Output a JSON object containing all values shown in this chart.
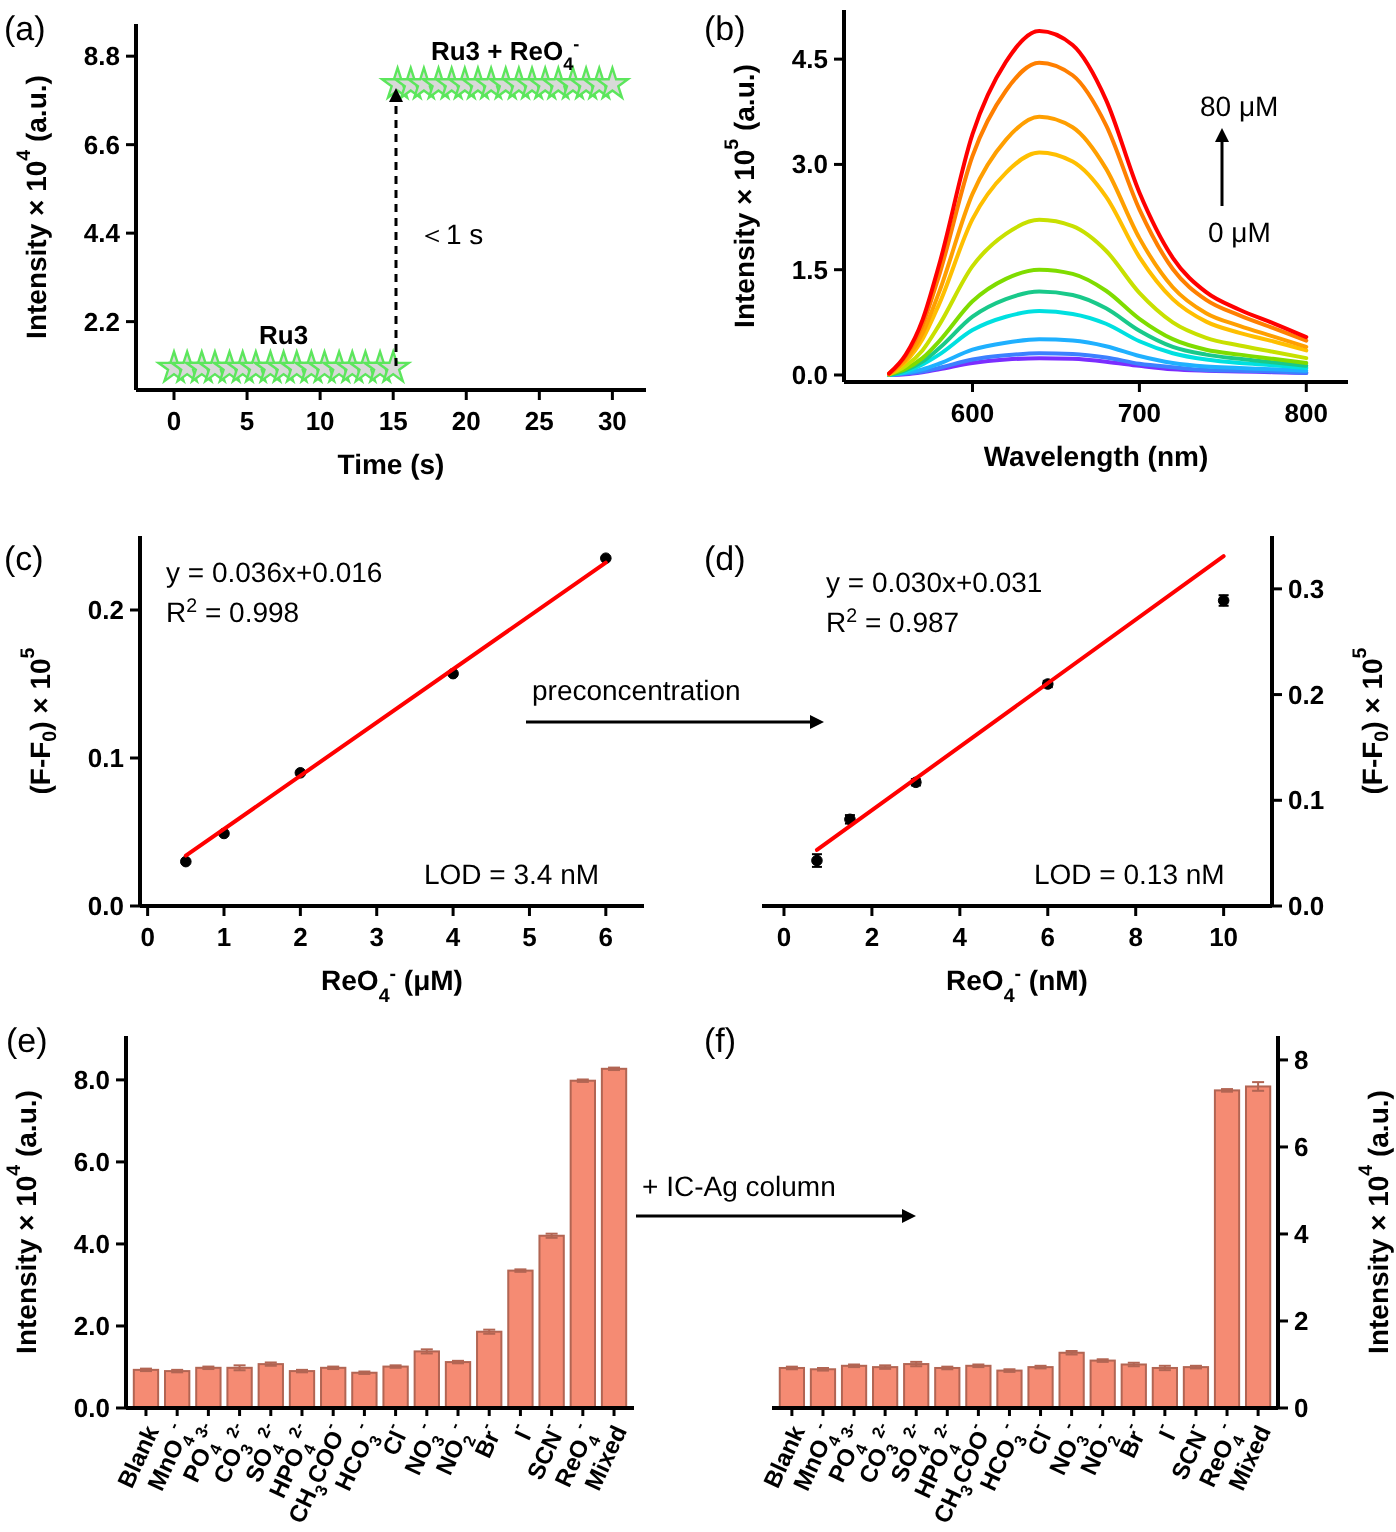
{
  "chart_data": [
    {
      "type": "scatter",
      "title": "(a)",
      "xlabel": "Time (s)",
      "ylabel": "Intensity × 10$^{4}$ (a.u.)",
      "xlim": [
        -2.6,
        32.3
      ],
      "xticks": [
        0,
        5,
        10,
        15,
        20,
        25,
        30
      ],
      "ylim": [
        0.5,
        9.6
      ],
      "yticks": [
        2.2,
        4.4,
        6.6,
        8.8
      ],
      "marker": "star",
      "series": [
        {
          "name": "Ru3",
          "color": "#5ce65c",
          "x": [
            0,
            0.9,
            1.9,
            2.8,
            3.8,
            4.7,
            5.6,
            6.6,
            7.5,
            8.4,
            9.4,
            10.3,
            11.3,
            12.2,
            13.1,
            14.1,
            15
          ],
          "values": [
            1.05,
            1.05,
            1.05,
            1.05,
            1.05,
            1.05,
            1.05,
            1.05,
            1.05,
            1.05,
            1.05,
            1.05,
            1.05,
            1.05,
            1.05,
            1.05,
            1.05
          ]
        },
        {
          "name": "Ru3 + ReO$_{4}$$^{-}$",
          "color": "#5ce65c",
          "x": [
            15.3,
            16.2,
            17.1,
            18.1,
            19,
            19.9,
            20.8,
            21.7,
            22.7,
            23.6,
            24.5,
            25.4,
            26.3,
            27.3,
            28.2,
            29.1,
            30
          ],
          "values": [
            8.1,
            8.1,
            8.1,
            8.1,
            8.1,
            8.1,
            8.1,
            8.1,
            8.1,
            8.1,
            8.1,
            8.1,
            8.1,
            8.1,
            8.1,
            8.1,
            8.1
          ]
        }
      ],
      "annotations": [
        "＜1 s"
      ]
    },
    {
      "type": "line",
      "title": "(b)",
      "xlabel": "Wavelength (nm)",
      "ylabel": "Intensity × 10$^{5}$ (a.u.)",
      "xlim": [
        523,
        825
      ],
      "xticks": [
        600,
        700,
        800
      ],
      "ylim": [
        -0.1,
        5.2
      ],
      "yticks": [
        {
          "value": 0,
          "label": "0.0"
        },
        {
          "value": 1.5,
          "label": "1.5"
        },
        {
          "value": 3,
          "label": "3.0"
        },
        {
          "value": 4.5,
          "label": "4.5"
        }
      ],
      "x": [
        550,
        560,
        570,
        580,
        600,
        620,
        640,
        660,
        680,
        700,
        720,
        740,
        760,
        780,
        800
      ],
      "series": [
        {
          "color": "#7b2dff",
          "values": [
            0,
            0.01,
            0.04,
            0.08,
            0.17,
            0.22,
            0.24,
            0.23,
            0.19,
            0.13,
            0.08,
            0.06,
            0.05,
            0.04,
            0.03
          ]
        },
        {
          "color": "#3c80ff",
          "values": [
            0,
            0.02,
            0.05,
            0.1,
            0.22,
            0.28,
            0.31,
            0.3,
            0.25,
            0.16,
            0.11,
            0.07,
            0.06,
            0.05,
            0.03
          ]
        },
        {
          "color": "#1fb0ff",
          "values": [
            0,
            0.03,
            0.08,
            0.16,
            0.36,
            0.46,
            0.51,
            0.49,
            0.41,
            0.27,
            0.17,
            0.12,
            0.1,
            0.08,
            0.06
          ]
        },
        {
          "color": "#00e0e0",
          "values": [
            0,
            0.05,
            0.15,
            0.29,
            0.64,
            0.83,
            0.91,
            0.87,
            0.73,
            0.48,
            0.31,
            0.22,
            0.17,
            0.14,
            0.1
          ]
        },
        {
          "color": "#19c98a",
          "values": [
            0,
            0.07,
            0.19,
            0.38,
            0.83,
            1.08,
            1.19,
            1.14,
            0.95,
            0.63,
            0.4,
            0.29,
            0.23,
            0.18,
            0.13
          ]
        },
        {
          "color": "#7fdc00",
          "values": [
            0.01,
            0.09,
            0.24,
            0.48,
            1.05,
            1.37,
            1.5,
            1.44,
            1.2,
            0.8,
            0.51,
            0.36,
            0.29,
            0.23,
            0.17
          ]
        },
        {
          "color": "#c8e000",
          "values": [
            0.01,
            0.13,
            0.35,
            0.71,
            1.55,
            2.01,
            2.21,
            2.12,
            1.77,
            1.17,
            0.75,
            0.53,
            0.42,
            0.33,
            0.24
          ]
        },
        {
          "color": "#ffbf00",
          "values": [
            0.01,
            0.19,
            0.51,
            1.01,
            2.22,
            2.88,
            3.17,
            3.04,
            2.54,
            1.68,
            1.08,
            0.76,
            0.6,
            0.48,
            0.35
          ]
        },
        {
          "color": "#ff9f00",
          "values": [
            0.01,
            0.22,
            0.59,
            1.18,
            2.58,
            3.35,
            3.68,
            3.53,
            2.94,
            1.95,
            1.25,
            0.88,
            0.7,
            0.55,
            0.4
          ]
        },
        {
          "color": "#ff7f00",
          "values": [
            0.02,
            0.27,
            0.71,
            1.42,
            3.12,
            4.05,
            4.45,
            4.27,
            3.56,
            2.36,
            1.51,
            1.07,
            0.85,
            0.67,
            0.49
          ]
        },
        {
          "color": "#ff0000",
          "values": [
            0.02,
            0.29,
            0.78,
            1.57,
            3.43,
            4.46,
            4.9,
            4.7,
            3.92,
            2.6,
            1.67,
            1.18,
            0.93,
            0.74,
            0.54
          ]
        }
      ],
      "annotations": [
        "80 μM",
        "0 μM"
      ]
    },
    {
      "type": "scatter",
      "title": "(c)",
      "xlabel": "ReO$_{4}$$^{-}$ (μM)",
      "ylabel": "(F-F$_{0}$) × 10$^{5}$",
      "xlim": [
        -0.1,
        6.5
      ],
      "xticks": [
        0,
        1,
        2,
        3,
        4,
        5,
        6
      ],
      "ylim": [
        0,
        0.25
      ],
      "yticks": [
        {
          "value": 0,
          "label": "0.0"
        },
        {
          "value": 0.1,
          "label": "0.1"
        },
        {
          "value": 0.2,
          "label": "0.2"
        }
      ],
      "series": [
        {
          "marker": "circle",
          "color": "#000000",
          "x": [
            0.5,
            1,
            2,
            4,
            6
          ],
          "values": [
            0.03,
            0.049,
            0.09,
            0.157,
            0.235
          ]
        },
        {
          "type": "line",
          "color": "#ff0000",
          "x": [
            0.5,
            6
          ],
          "values": [
            0.034,
            0.232
          ]
        }
      ],
      "annotations": [
        "y = 0.036x+0.016",
        "R$^{2}$ = 0.998",
        "LOD = 3.4 nM",
        "preconcentration"
      ]
    },
    {
      "type": "scatter",
      "title": "(d)",
      "xlabel": "ReO$_{4}$$^{-}$ (nM)",
      "y2label": "(F-F$_{0}$) × 10$^{5}$",
      "xlim": [
        -0.5,
        11.1
      ],
      "xticks": [
        0,
        2,
        4,
        6,
        8,
        10
      ],
      "y2lim": [
        0,
        0.35
      ],
      "y2ticks": [
        {
          "value": 0,
          "label": "0.0"
        },
        {
          "value": 0.1,
          "label": "0.1"
        },
        {
          "value": 0.2,
          "label": "0.2"
        },
        {
          "value": 0.3,
          "label": "0.3"
        }
      ],
      "series": [
        {
          "marker": "circle",
          "axis": "y2",
          "color": "#000000",
          "x": [
            0.75,
            1.5,
            3,
            6,
            10
          ],
          "values": [
            0.043,
            0.082,
            0.117,
            0.21,
            0.289
          ],
          "errors": [
            0.006,
            0.004,
            0.003,
            0.003,
            0.005
          ]
        },
        {
          "axis": "y2",
          "type": "line",
          "color": "#ff0000",
          "x": [
            0.75,
            10
          ],
          "values": [
            0.053,
            0.331
          ]
        }
      ],
      "annotations": [
        "y = 0.030x+0.031",
        "R$^{2}$ = 0.987",
        "LOD = 0.13 nM"
      ]
    },
    {
      "type": "bar",
      "title": "(e)",
      "ylabel": "Intensity × 10$^{4}$ (a.u.)",
      "ylim": [
        0,
        9.07
      ],
      "yticks": [
        {
          "value": 0,
          "label": "0.0"
        },
        {
          "value": 2,
          "label": "2.0"
        },
        {
          "value": 4,
          "label": "4.0"
        },
        {
          "value": 6,
          "label": "6.0"
        },
        {
          "value": 8,
          "label": "8.0"
        }
      ],
      "categories": [
        "Blank",
        "MnO$_{4}$$^{-}$",
        "PO$_{4}$$^{3-}$",
        "CO$_{3}$$^{2-}$",
        "SO$_{4}$$^{2-}$",
        "HPO$_{4}$$^{2-}$",
        "CH$_{3}$COO$^{-}$",
        "HCO$_{3}$$^{-}$",
        "Cl$^{-}$",
        "NO$_{3}$$^{-}$",
        "NO$_{2}$$^{-}$",
        "Br$^{-}$",
        "I$^{-}$",
        "SCN$^{-}$",
        "ReO$_{4}$$^{-}$",
        "Mixed"
      ],
      "series": [
        {
          "color": "#f58b73",
          "values": [
            0.93,
            0.9,
            0.98,
            0.98,
            1.07,
            0.9,
            0.98,
            0.86,
            1.01,
            1.38,
            1.12,
            1.86,
            3.35,
            4.2,
            7.98,
            8.27
          ],
          "errors": [
            0.03,
            0.03,
            0.03,
            0.06,
            0.04,
            0.03,
            0.03,
            0.03,
            0.03,
            0.05,
            0.03,
            0.05,
            0.03,
            0.05,
            0.03,
            0.03
          ]
        }
      ],
      "annotations": [
        "+ IC-Ag column"
      ]
    },
    {
      "type": "bar",
      "title": "(f)",
      "y2label": "Intensity × 10$^{4}$ (a.u.)",
      "y2lim": [
        0,
        8.55
      ],
      "y2ticks": [
        0,
        2,
        4,
        6,
        8
      ],
      "categories": [
        "Blank",
        "MnO$_{4}$$^{-}$",
        "PO$_{4}$$^{3-}$",
        "CO$_{3}$$^{2-}$",
        "SO$_{4}$$^{2-}$",
        "HPO$_{4}$$^{2-}$",
        "CH$_{3}$COO$^{-}$",
        "HCO$_{3}$$^{-}$",
        "Cl$^{-}$",
        "NO$_{3}$$^{-}$",
        "NO$_{2}$$^{-}$",
        "Br$^{-}$",
        "I$^{-}$",
        "SCN$^{-}$",
        "ReO$_{4}$$^{-}$",
        "Mixed"
      ],
      "series": [
        {
          "axis": "y2",
          "color": "#f58b73",
          "values": [
            0.92,
            0.89,
            0.97,
            0.94,
            1.01,
            0.92,
            0.97,
            0.86,
            0.94,
            1.27,
            1.09,
            1.0,
            0.92,
            0.94,
            7.3,
            7.39
          ],
          "errors": [
            0.03,
            0.03,
            0.03,
            0.04,
            0.05,
            0.03,
            0.03,
            0.03,
            0.03,
            0.04,
            0.03,
            0.04,
            0.05,
            0.03,
            0.03,
            0.1
          ]
        }
      ]
    }
  ]
}
